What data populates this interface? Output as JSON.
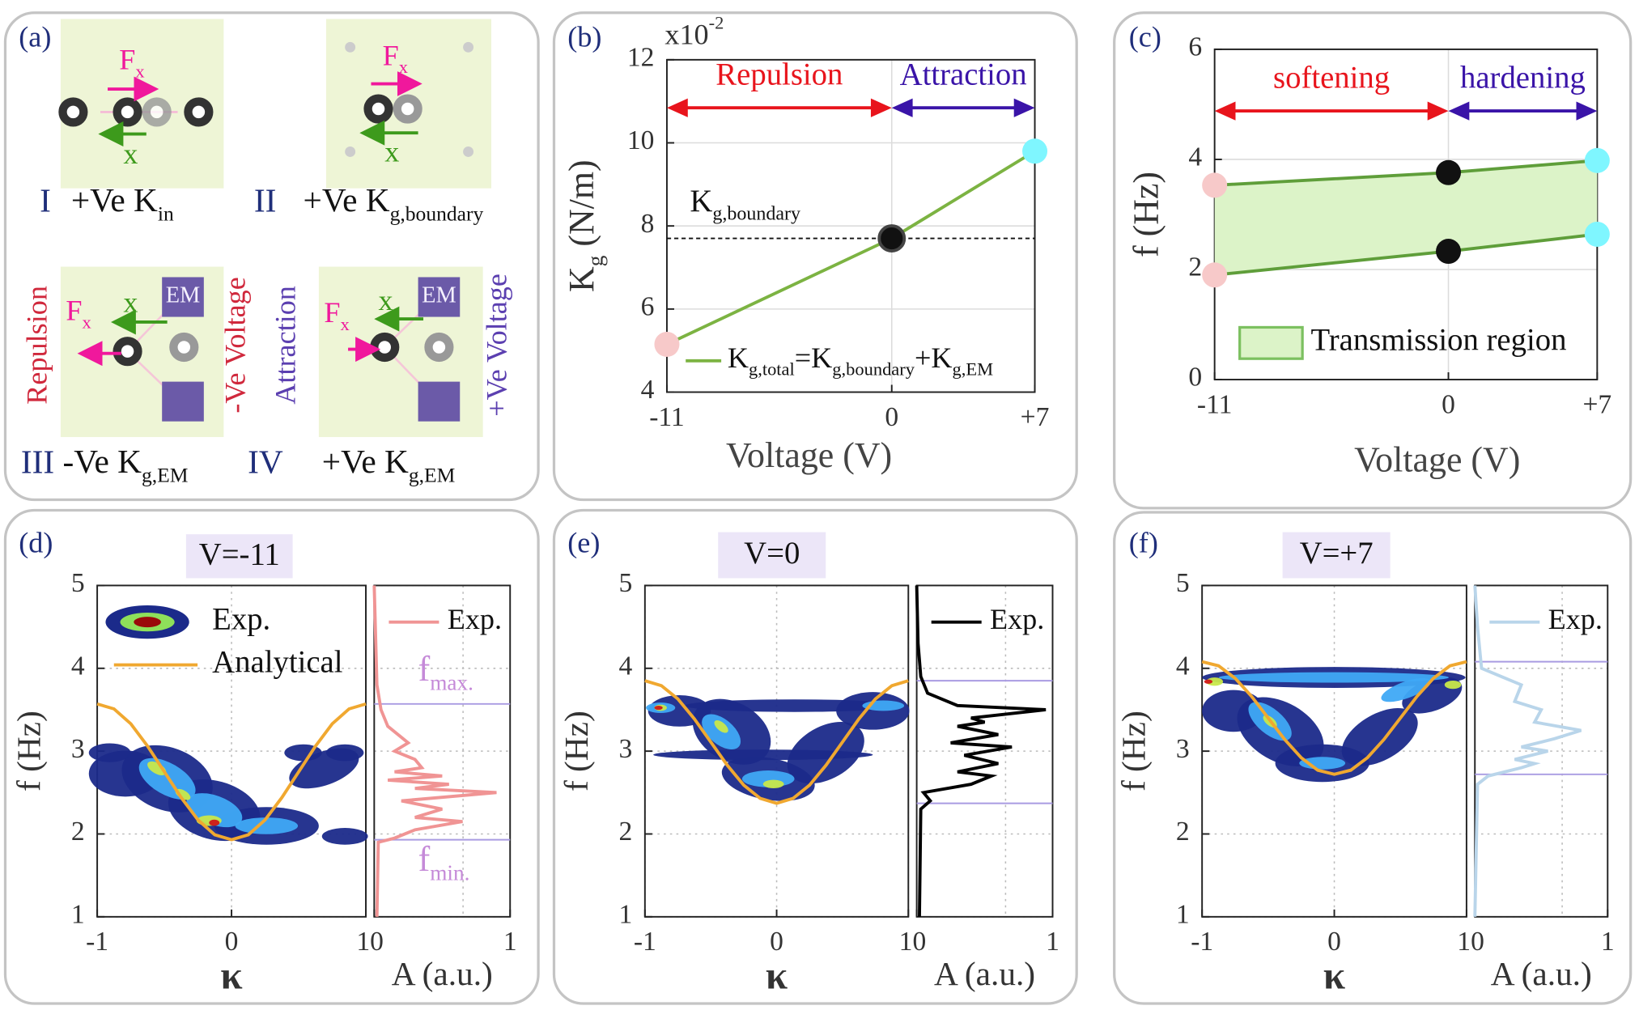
{
  "panel_a": {
    "label": "(a)",
    "cells": [
      {
        "numeral": "I",
        "caption": "+Ve K",
        "caption_sub": "in",
        "force": "F",
        "force_sub": "x",
        "disp": "x"
      },
      {
        "numeral": "II",
        "caption": "+Ve K",
        "caption_sub": "g,boundary",
        "force": "F",
        "force_sub": "x",
        "disp": "x"
      },
      {
        "numeral": "III",
        "caption": "-Ve K",
        "caption_sub": "g,EM",
        "force": "F",
        "force_sub": "x",
        "disp": "x",
        "effect": "Repulsion",
        "voltage": "-Ve Voltage",
        "magnet": "EM"
      },
      {
        "numeral": "IV",
        "caption": "+Ve K",
        "caption_sub": "g,EM",
        "force": "F",
        "force_sub": "x",
        "disp": "x",
        "effect": "Attraction",
        "voltage": "+Ve Voltage",
        "magnet": "EM"
      }
    ]
  },
  "chart_data": [
    {
      "type": "line",
      "label": "(b)",
      "xlabel": "Voltage (V)",
      "ylabel": "K",
      "ylabel_sub": "g",
      "ylabel_unit": " (N/m)",
      "y_multiplier": "x10",
      "y_multiplier_exp": "-2",
      "xlim": [
        -11,
        7
      ],
      "xticks": [
        -11,
        0,
        {
          "value": 7,
          "label": "+7"
        }
      ],
      "ylim": [
        4,
        12
      ],
      "yticks": [
        4,
        6,
        8,
        10,
        12
      ],
      "grid": true,
      "x": [
        -11,
        0,
        7
      ],
      "series": [
        {
          "name_parts": [
            "K",
            "g,total",
            "=K",
            "g,boundary",
            "+K",
            "g,EM"
          ],
          "color": "#7cb342",
          "values": [
            5.15,
            7.7,
            9.8
          ],
          "marker_colors": [
            "#f7c9c9",
            "#111111",
            "#7ff6ff"
          ]
        }
      ],
      "reference": {
        "label": "K",
        "label_sub": "g,boundary",
        "value": 7.7
      },
      "regions": [
        {
          "label": "Repulsion",
          "from": -11,
          "to": 0,
          "color": "#e8141c"
        },
        {
          "label": "Attraction",
          "from": 0,
          "to": 7,
          "color": "#3a14a8"
        }
      ]
    },
    {
      "type": "area",
      "label": "(c)",
      "xlabel": "Voltage (V)",
      "ylabel": "f (Hz)",
      "xlim": [
        -11,
        7
      ],
      "xticks": [
        -11,
        0,
        {
          "value": 7,
          "label": "+7"
        }
      ],
      "ylim": [
        0,
        6
      ],
      "yticks": [
        0,
        2,
        4,
        6
      ],
      "grid": true,
      "x": [
        -11,
        0,
        7
      ],
      "series": [
        {
          "color": "#5f9e3a",
          "values": [
            3.53,
            3.76,
            3.98
          ],
          "marker_colors": [
            "#f7c9c9",
            "#111111",
            "#7ff6ff"
          ]
        },
        {
          "color": "#5f9e3a",
          "values": [
            1.9,
            2.33,
            2.64
          ],
          "marker_colors": [
            "#f7c9c9",
            "#111111",
            "#7ff6ff"
          ]
        }
      ],
      "fill_color": "#dcf3c8",
      "legend": "Transmission region",
      "regions": [
        {
          "label": "softening",
          "from": -11,
          "to": 0,
          "color": "#e8141c"
        },
        {
          "label": "hardening",
          "from": 0,
          "to": 7,
          "color": "#3a14a8"
        }
      ]
    },
    {
      "type": "contour",
      "label": "(d)",
      "title": "V=-11",
      "xlabel": "κ",
      "ylabel": "f (Hz)",
      "xlim": [
        -1,
        1
      ],
      "xticks": [
        -1,
        0,
        1
      ],
      "ylim": [
        1,
        5
      ],
      "yticks": [
        1,
        2,
        3,
        4,
        5
      ],
      "grid": true,
      "contour_legend": "Exp.",
      "analytical": {
        "name": "Analytical",
        "color": "#f0a830",
        "x": [
          -1,
          -0.875,
          -0.75,
          -0.625,
          -0.5,
          -0.375,
          -0.25,
          -0.125,
          0,
          0.125,
          0.25,
          0.375,
          0.5,
          0.625,
          0.75,
          0.875,
          1
        ],
        "values": [
          3.57,
          3.51,
          3.33,
          3.06,
          2.75,
          2.44,
          2.17,
          1.99,
          1.93,
          1.99,
          2.17,
          2.44,
          2.75,
          3.06,
          3.33,
          3.51,
          3.57
        ]
      },
      "spectrum": {
        "name": "Exp.",
        "color": "#f09494",
        "xlabel": "A (a.u.)",
        "xlim": [
          0,
          1
        ],
        "xticks": [
          0,
          1
        ],
        "freq": [
          1.0,
          1.9,
          1.95,
          2.05,
          2.15,
          2.2,
          2.3,
          2.4,
          2.5,
          2.55,
          2.6,
          2.65,
          2.7,
          2.75,
          2.8,
          2.9,
          3.0,
          3.1,
          3.3,
          3.5,
          3.8,
          5.0
        ],
        "amplitude": [
          0.02,
          0.03,
          0.15,
          0.3,
          0.65,
          0.3,
          0.5,
          0.2,
          0.9,
          0.3,
          0.55,
          0.1,
          0.5,
          0.15,
          0.35,
          0.3,
          0.15,
          0.25,
          0.1,
          0.05,
          0.02,
          0
        ],
        "f_max": 3.57,
        "f_min": 1.93,
        "f_max_label": "f",
        "f_max_sub": "max.",
        "f_min_label": "f",
        "f_min_sub": "min."
      }
    },
    {
      "type": "contour",
      "label": "(e)",
      "title": "V=0",
      "xlabel": "κ",
      "ylabel": "f (Hz)",
      "xlim": [
        -1,
        1
      ],
      "xticks": [
        -1,
        0,
        1
      ],
      "ylim": [
        1,
        5
      ],
      "yticks": [
        1,
        2,
        3,
        4,
        5
      ],
      "grid": true,
      "analytical": {
        "color": "#f0a830",
        "x": [
          -1,
          -0.875,
          -0.75,
          -0.625,
          -0.5,
          -0.375,
          -0.25,
          -0.125,
          0,
          0.125,
          0.25,
          0.375,
          0.5,
          0.625,
          0.75,
          0.875,
          1
        ],
        "values": [
          3.85,
          3.79,
          3.63,
          3.39,
          3.11,
          2.83,
          2.59,
          2.43,
          2.37,
          2.43,
          2.59,
          2.83,
          3.11,
          3.39,
          3.63,
          3.79,
          3.85
        ]
      },
      "spectrum": {
        "name": "Exp.",
        "color": "#000000",
        "xlabel": "A (a.u.)",
        "xlim": [
          0,
          1
        ],
        "xticks": [
          0,
          1
        ],
        "freq": [
          1.0,
          2.3,
          2.4,
          2.5,
          2.6,
          2.7,
          2.75,
          2.85,
          2.95,
          3.05,
          3.1,
          3.2,
          3.3,
          3.35,
          3.4,
          3.5,
          3.55,
          3.7,
          3.9,
          4.3,
          5.0
        ],
        "amplitude": [
          0.02,
          0.03,
          0.1,
          0.05,
          0.4,
          0.55,
          0.3,
          0.6,
          0.35,
          0.7,
          0.25,
          0.6,
          0.3,
          0.5,
          0.4,
          0.95,
          0.3,
          0.08,
          0.03,
          0.01,
          0
        ],
        "f_max": 3.85,
        "f_min": 2.37
      }
    },
    {
      "type": "contour",
      "label": "(f)",
      "title": "V=+7",
      "xlabel": "κ",
      "ylabel": "f (Hz)",
      "xlim": [
        -1,
        1
      ],
      "xticks": [
        -1,
        0,
        1
      ],
      "ylim": [
        1,
        5
      ],
      "yticks": [
        1,
        2,
        3,
        4,
        5
      ],
      "grid": true,
      "analytical": {
        "color": "#f0a830",
        "x": [
          -1,
          -0.875,
          -0.75,
          -0.625,
          -0.5,
          -0.375,
          -0.25,
          -0.125,
          0,
          0.125,
          0.25,
          0.375,
          0.5,
          0.625,
          0.75,
          0.875,
          1
        ],
        "values": [
          4.08,
          4.03,
          3.88,
          3.66,
          3.4,
          3.14,
          2.92,
          2.77,
          2.72,
          2.77,
          2.92,
          3.14,
          3.4,
          3.66,
          3.88,
          4.03,
          4.08
        ]
      },
      "spectrum": {
        "name": "Exp.",
        "color": "#b9d5ea",
        "xlabel": "A (a.u.)",
        "xlim": [
          0,
          1
        ],
        "xticks": [
          0,
          1
        ],
        "freq": [
          1.0,
          2.6,
          2.7,
          2.8,
          2.85,
          2.9,
          3.0,
          3.05,
          3.15,
          3.25,
          3.35,
          3.5,
          3.6,
          3.8,
          3.9,
          4.0,
          4.5,
          5.0
        ],
        "amplitude": [
          0,
          0.02,
          0.1,
          0.35,
          0.45,
          0.3,
          0.55,
          0.35,
          0.6,
          0.8,
          0.45,
          0.5,
          0.3,
          0.35,
          0.2,
          0.05,
          0.02,
          0
        ],
        "f_max": 4.08,
        "f_min": 2.72
      }
    }
  ]
}
